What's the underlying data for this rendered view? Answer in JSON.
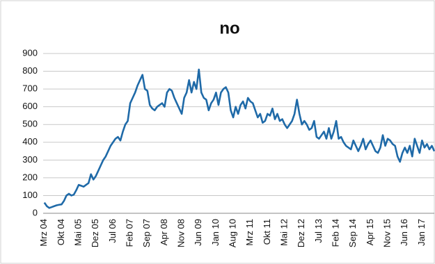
{
  "chart_data": {
    "type": "line",
    "title": "no",
    "categories": [
      "Mrz 04",
      null,
      null,
      null,
      null,
      null,
      null,
      "Okt 04",
      null,
      null,
      null,
      null,
      null,
      null,
      "Mai 05",
      null,
      null,
      null,
      null,
      null,
      null,
      "Dez 05",
      null,
      null,
      null,
      null,
      null,
      null,
      "Jul 06",
      null,
      null,
      null,
      null,
      null,
      null,
      "Feb 07",
      null,
      null,
      null,
      null,
      null,
      null,
      "Sep 07",
      null,
      null,
      null,
      null,
      null,
      null,
      "Apr 08",
      null,
      null,
      null,
      null,
      null,
      null,
      "Nov 08",
      null,
      null,
      null,
      null,
      null,
      null,
      "Jun 09",
      null,
      null,
      null,
      null,
      null,
      null,
      "Jan 10",
      null,
      null,
      null,
      null,
      null,
      null,
      "Aug 10",
      null,
      null,
      null,
      null,
      null,
      null,
      "Mrz 11",
      null,
      null,
      null,
      null,
      null,
      null,
      "Okt 11",
      null,
      null,
      null,
      null,
      null,
      null,
      "Mai 12",
      null,
      null,
      null,
      null,
      null,
      null,
      "Dez 12",
      null,
      null,
      null,
      null,
      null,
      null,
      "Jul 13",
      null,
      null,
      null,
      null,
      null,
      null,
      "Feb 14",
      null,
      null,
      null,
      null,
      null,
      null,
      "Sep 14",
      null,
      null,
      null,
      null,
      null,
      null,
      "Apr 15",
      null,
      null,
      null,
      null,
      null,
      null,
      "Nov 15",
      null,
      null,
      null,
      null,
      null,
      null,
      "Jun 16",
      null,
      null,
      null,
      null,
      null,
      null,
      "Jan 17",
      null,
      null,
      null,
      null,
      null
    ],
    "values": [
      60,
      40,
      30,
      35,
      40,
      45,
      48,
      50,
      70,
      100,
      110,
      100,
      105,
      130,
      160,
      155,
      150,
      160,
      170,
      220,
      190,
      210,
      240,
      270,
      300,
      320,
      350,
      380,
      400,
      420,
      430,
      410,
      460,
      500,
      520,
      620,
      650,
      680,
      720,
      750,
      780,
      700,
      690,
      610,
      590,
      580,
      600,
      610,
      620,
      600,
      680,
      700,
      690,
      650,
      620,
      590,
      560,
      650,
      680,
      750,
      680,
      740,
      700,
      810,
      680,
      650,
      640,
      580,
      620,
      640,
      680,
      610,
      680,
      700,
      710,
      680,
      580,
      540,
      600,
      560,
      610,
      630,
      590,
      650,
      630,
      620,
      580,
      540,
      560,
      510,
      520,
      560,
      550,
      590,
      530,
      560,
      520,
      530,
      500,
      480,
      500,
      520,
      560,
      640,
      560,
      500,
      520,
      500,
      470,
      480,
      520,
      430,
      420,
      440,
      460,
      420,
      480,
      420,
      460,
      520,
      420,
      430,
      400,
      380,
      370,
      360,
      410,
      380,
      350,
      380,
      420,
      360,
      390,
      410,
      380,
      350,
      340,
      370,
      440,
      380,
      420,
      410,
      390,
      380,
      320,
      290,
      340,
      370,
      340,
      380,
      320,
      420,
      380,
      340,
      410,
      370,
      390,
      360,
      380,
      350
    ],
    "color": "#1f6aa8",
    "ylim": [
      0,
      900
    ],
    "yticks": [
      0,
      100,
      200,
      300,
      400,
      500,
      600,
      700,
      800,
      900
    ],
    "grid": true
  }
}
